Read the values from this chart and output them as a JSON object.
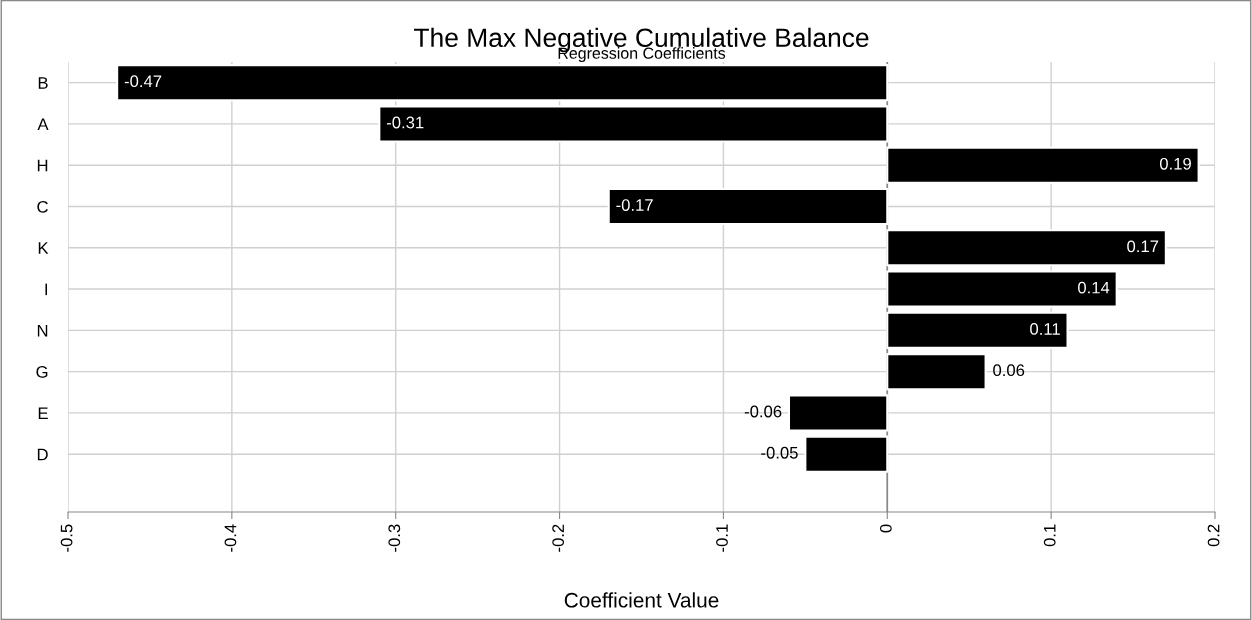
{
  "chart_data": {
    "type": "bar",
    "orientation": "horizontal",
    "title": "The Max Negative Cumulative Balance",
    "subtitle": "Regression Coefficients",
    "xlabel": "Coefficient Value",
    "categories": [
      "B",
      "A",
      "H",
      "C",
      "K",
      "I",
      "N",
      "G",
      "E",
      "D"
    ],
    "values": [
      -0.47,
      -0.31,
      0.19,
      -0.17,
      0.17,
      0.14,
      0.11,
      0.06,
      -0.06,
      -0.05
    ],
    "color": "#000000",
    "data_labels": true,
    "grid": true,
    "legend": false,
    "xlim": [
      -0.5,
      0.2
    ],
    "xticks": [
      -0.5,
      -0.4,
      -0.3,
      -0.2,
      -0.1,
      0,
      0.1,
      0.2
    ]
  }
}
